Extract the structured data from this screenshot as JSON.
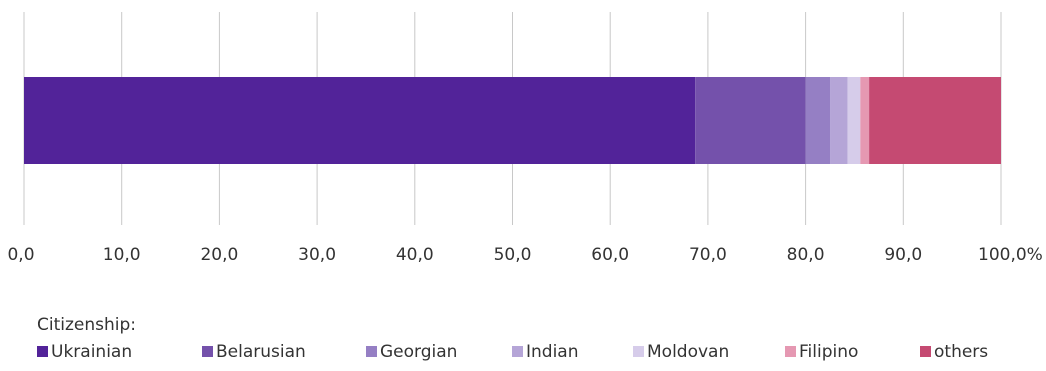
{
  "chart_data": {
    "type": "bar",
    "orientation": "horizontal",
    "stacked": true,
    "categories": [
      ""
    ],
    "xlim": [
      0,
      100
    ],
    "x_ticks": [
      0,
      10,
      20,
      30,
      40,
      50,
      60,
      70,
      80,
      90,
      100
    ],
    "x_tick_labels": [
      "0,0",
      "10,0",
      "20,0",
      "30,0",
      "40,0",
      "50,0",
      "60,0",
      "70,0",
      "80,0",
      "90,0",
      "100,0%"
    ],
    "grid": true,
    "legend_title": "Citizenship:",
    "legend_position": "bottom-left",
    "series": [
      {
        "name": "Ukrainian",
        "values": [
          68.7
        ],
        "color": "#522399"
      },
      {
        "name": "Belarusian",
        "values": [
          11.3
        ],
        "color": "#7451ab"
      },
      {
        "name": "Georgian",
        "values": [
          2.5
        ],
        "color": "#957fc4"
      },
      {
        "name": "Indian",
        "values": [
          1.8
        ],
        "color": "#b5a5d7"
      },
      {
        "name": "Moldovan",
        "values": [
          1.3
        ],
        "color": "#d6ccea"
      },
      {
        "name": "Filipino",
        "values": [
          0.9
        ],
        "color": "#e598b2"
      },
      {
        "name": "others",
        "values": [
          13.5
        ],
        "color": "#c54a72"
      }
    ]
  }
}
